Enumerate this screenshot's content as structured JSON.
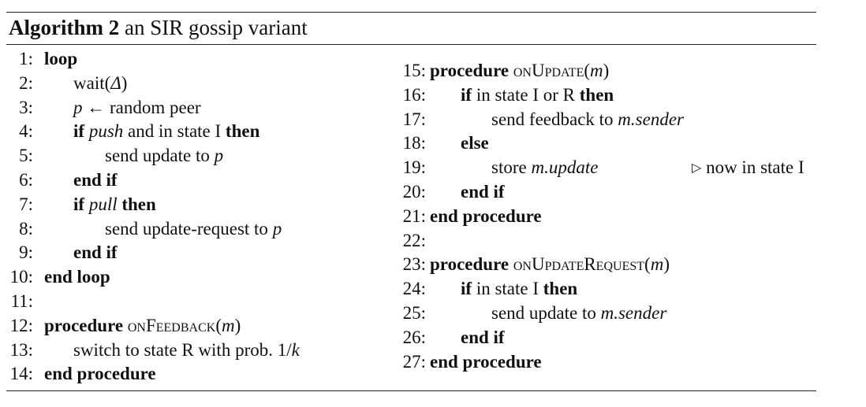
{
  "header": {
    "label": "Algorithm 2",
    "caption": "an SIR gossip variant"
  },
  "left_lines": [
    {
      "n": "1:",
      "indent": 0,
      "parts": [
        [
          "b",
          "loop"
        ]
      ]
    },
    {
      "n": "2:",
      "indent": 1,
      "parts": [
        [
          "n",
          "wait("
        ],
        [
          "i",
          "Δ"
        ],
        [
          "n",
          ")"
        ]
      ]
    },
    {
      "n": "3:",
      "indent": 1,
      "parts": [
        [
          "i",
          "p"
        ],
        [
          "n",
          " ← random peer"
        ]
      ]
    },
    {
      "n": "4:",
      "indent": 1,
      "parts": [
        [
          "b",
          "if "
        ],
        [
          "i",
          "push"
        ],
        [
          "n",
          " and in state I "
        ],
        [
          "b",
          "then"
        ]
      ]
    },
    {
      "n": "5:",
      "indent": 2,
      "parts": [
        [
          "n",
          "send update to "
        ],
        [
          "i",
          "p"
        ]
      ]
    },
    {
      "n": "6:",
      "indent": 1,
      "parts": [
        [
          "b",
          "end if"
        ]
      ]
    },
    {
      "n": "7:",
      "indent": 1,
      "parts": [
        [
          "b",
          "if "
        ],
        [
          "i",
          "pull"
        ],
        [
          "b",
          " then"
        ]
      ]
    },
    {
      "n": "8:",
      "indent": 2,
      "parts": [
        [
          "n",
          "send update-request to "
        ],
        [
          "i",
          "p"
        ]
      ]
    },
    {
      "n": "9:",
      "indent": 1,
      "parts": [
        [
          "b",
          "end if"
        ]
      ]
    },
    {
      "n": "10:",
      "indent": 0,
      "parts": [
        [
          "b",
          "end loop"
        ]
      ]
    },
    {
      "n": "11:",
      "indent": 0,
      "parts": []
    },
    {
      "n": "12:",
      "indent": 0,
      "parts": [
        [
          "b",
          "procedure "
        ],
        [
          "sc",
          "onFeedback"
        ],
        [
          "n",
          "("
        ],
        [
          "i",
          "m"
        ],
        [
          "n",
          ")"
        ]
      ]
    },
    {
      "n": "13:",
      "indent": 1,
      "parts": [
        [
          "n",
          "switch to state R with prob. 1/"
        ],
        [
          "i",
          "k"
        ]
      ]
    },
    {
      "n": "14:",
      "indent": 0,
      "parts": [
        [
          "b",
          "end procedure"
        ]
      ]
    }
  ],
  "right_lines": [
    {
      "n": "15:",
      "indent": 0,
      "parts": [
        [
          "b",
          "procedure "
        ],
        [
          "sc",
          "onUpdate"
        ],
        [
          "n",
          "("
        ],
        [
          "i",
          "m"
        ],
        [
          "n",
          ")"
        ]
      ]
    },
    {
      "n": "16:",
      "indent": 1,
      "parts": [
        [
          "b",
          "if"
        ],
        [
          "n",
          " in state I or R "
        ],
        [
          "b",
          "then"
        ]
      ]
    },
    {
      "n": "17:",
      "indent": 2,
      "parts": [
        [
          "n",
          "send feedback to "
        ],
        [
          "i",
          "m.sender"
        ]
      ]
    },
    {
      "n": "18:",
      "indent": 1,
      "parts": [
        [
          "b",
          "else"
        ]
      ]
    },
    {
      "n": "19:",
      "indent": 2,
      "parts": [
        [
          "n",
          "store "
        ],
        [
          "i",
          "m.update"
        ]
      ]
    },
    {
      "n": "20:",
      "indent": 1,
      "parts": [
        [
          "b",
          "end if"
        ]
      ]
    },
    {
      "n": "21:",
      "indent": 0,
      "parts": [
        [
          "b",
          "end procedure"
        ]
      ]
    },
    {
      "n": "22:",
      "indent": 0,
      "parts": []
    },
    {
      "n": "23:",
      "indent": 0,
      "parts": [
        [
          "b",
          "procedure "
        ],
        [
          "sc",
          "onUpdateRequest"
        ],
        [
          "n",
          "("
        ],
        [
          "i",
          "m"
        ],
        [
          "n",
          ")"
        ]
      ]
    },
    {
      "n": "24:",
      "indent": 1,
      "parts": [
        [
          "b",
          "if"
        ],
        [
          "n",
          " in state I "
        ],
        [
          "b",
          "then"
        ]
      ]
    },
    {
      "n": "25:",
      "indent": 2,
      "parts": [
        [
          "n",
          "send update to "
        ],
        [
          "i",
          "m.sender"
        ]
      ]
    },
    {
      "n": "26:",
      "indent": 1,
      "parts": [
        [
          "b",
          "end if"
        ]
      ]
    },
    {
      "n": "27:",
      "indent": 0,
      "parts": [
        [
          "b",
          "end procedure"
        ]
      ]
    }
  ],
  "comment": {
    "line": "19:",
    "symbol": "▷",
    "text": "now in state I"
  }
}
